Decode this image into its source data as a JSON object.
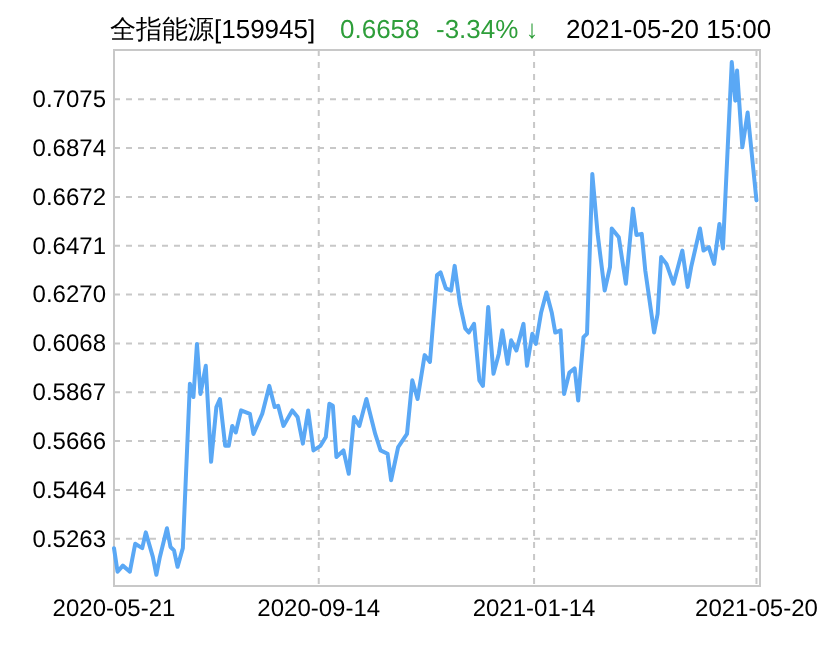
{
  "chart_data": {
    "type": "line",
    "title": "全指能源[159945]",
    "annotations": [
      "0.6658",
      "-3.34% ↓",
      "2021-05-20 15:00"
    ],
    "xlim": [
      "2020-05-21",
      "2021-05-22"
    ],
    "ylim": [
      0.5068,
      0.7278
    ],
    "xticks": [
      "2020-05-21",
      "2020-09-14",
      "2021-01-14",
      "2021-05-20"
    ],
    "yticks": [
      0.5263,
      0.5464,
      0.5666,
      0.5867,
      0.6068,
      {
        "value": 0.627,
        "label": "0.6270"
      },
      0.6471,
      0.6672,
      0.6874,
      0.7075
    ],
    "grid": true,
    "line_style": "solid",
    "marker": "none",
    "series": [
      {
        "color": "#5aa8f5",
        "x": [
          "2020-05-21",
          "2020-05-23",
          "2020-05-26",
          "2020-05-30",
          "2020-06-02",
          "2020-06-06",
          "2020-06-08",
          "2020-06-12",
          "2020-06-14",
          "2020-06-16",
          "2020-06-20",
          "2020-06-22",
          "2020-06-24",
          "2020-06-26",
          "2020-06-29",
          "2020-07-03",
          "2020-07-05",
          "2020-07-07",
          "2020-07-09",
          "2020-07-12",
          "2020-07-15",
          "2020-07-18",
          "2020-07-20",
          "2020-07-23",
          "2020-07-25",
          "2020-07-27",
          "2020-07-29",
          "2020-08-01",
          "2020-08-06",
          "2020-08-08",
          "2020-08-13",
          "2020-08-17",
          "2020-08-20",
          "2020-08-22",
          "2020-08-25",
          "2020-08-30",
          "2020-09-02",
          "2020-09-05",
          "2020-09-08",
          "2020-09-11",
          "2020-09-15",
          "2020-09-18",
          "2020-09-20",
          "2020-09-22",
          "2020-09-24",
          "2020-09-28",
          "2020-10-01",
          "2020-10-04",
          "2020-10-07",
          "2020-10-11",
          "2020-10-16",
          "2020-10-19",
          "2020-10-23",
          "2020-10-25",
          "2020-10-29",
          "2020-11-03",
          "2020-11-06",
          "2020-11-09",
          "2020-11-13",
          "2020-11-16",
          "2020-11-20",
          "2020-11-22",
          "2020-11-25",
          "2020-11-28",
          "2020-11-30",
          "2020-12-03",
          "2020-12-06",
          "2020-12-08",
          "2020-12-11",
          "2020-12-14",
          "2020-12-16",
          "2020-12-19",
          "2020-12-22",
          "2020-12-25",
          "2020-12-27",
          "2020-12-30",
          "2021-01-01",
          "2021-01-04",
          "2021-01-08",
          "2021-01-10",
          "2021-01-13",
          "2021-01-15",
          "2021-01-18",
          "2021-01-21",
          "2021-01-24",
          "2021-01-26",
          "2021-01-29",
          "2021-01-31",
          "2021-02-03",
          "2021-02-06",
          "2021-02-08",
          "2021-02-11",
          "2021-02-13",
          "2021-02-16",
          "2021-02-19",
          "2021-02-23",
          "2021-02-26",
          "2021-02-27",
          "2021-03-03",
          "2021-03-07",
          "2021-03-11",
          "2021-03-13",
          "2021-03-16",
          "2021-03-18",
          "2021-03-23",
          "2021-03-25",
          "2021-03-27",
          "2021-03-30",
          "2021-04-03",
          "2021-04-08",
          "2021-04-11",
          "2021-04-13",
          "2021-04-18",
          "2021-04-20",
          "2021-04-23",
          "2021-04-26",
          "2021-04-29",
          "2021-05-01",
          "2021-05-06",
          "2021-05-08",
          "2021-05-09",
          "2021-05-12",
          "2021-05-15",
          "2021-05-20"
        ],
        "values": [
          0.5224,
          0.5127,
          0.5152,
          0.5127,
          0.5242,
          0.5224,
          0.5289,
          0.5188,
          0.5114,
          0.5188,
          0.5306,
          0.5229,
          0.5215,
          0.5147,
          0.5224,
          0.5902,
          0.5847,
          0.6066,
          0.586,
          0.5976,
          0.558,
          0.5806,
          0.5839,
          0.5646,
          0.5646,
          0.5728,
          0.5701,
          0.5792,
          0.5778,
          0.5695,
          0.5778,
          0.5893,
          0.5806,
          0.5811,
          0.5728,
          0.5792,
          0.5765,
          0.5655,
          0.5792,
          0.5627,
          0.5646,
          0.5682,
          0.5819,
          0.5811,
          0.56,
          0.5627,
          0.5531,
          0.5765,
          0.5728,
          0.5839,
          0.5695,
          0.5627,
          0.5613,
          0.5504,
          0.5641,
          0.5695,
          0.5916,
          0.5839,
          0.602,
          0.5992,
          0.635,
          0.6361,
          0.6295,
          0.6286,
          0.6388,
          0.6231,
          0.613,
          0.6113,
          0.6149,
          0.5916,
          0.5893,
          0.6218,
          0.5943,
          0.6025,
          0.6122,
          0.5984,
          0.6081,
          0.6039,
          0.6149,
          0.5976,
          0.6108,
          0.6066,
          0.6196,
          0.6278,
          0.6196,
          0.6113,
          0.6122,
          0.586,
          0.5948,
          0.5965,
          0.5833,
          0.6094,
          0.6108,
          0.6767,
          0.652,
          0.6286,
          0.6383,
          0.6542,
          0.6506,
          0.6314,
          0.6624,
          0.6515,
          0.652,
          0.6369,
          0.6113,
          0.619,
          0.6424,
          0.6396,
          0.6314,
          0.6451,
          0.6301,
          0.6383,
          0.6542,
          0.6451,
          0.6465,
          0.6396,
          0.6561,
          0.646,
          0.7228,
          0.7069,
          0.7193,
          0.6877,
          0.702,
          0.6658
        ]
      }
    ]
  }
}
